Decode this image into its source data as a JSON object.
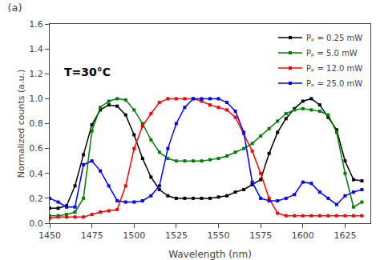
{
  "chart_data": {
    "type": "line",
    "title": "(a)",
    "annotations": [
      {
        "text": "T=30°C"
      }
    ],
    "x_label": "Wavelength (nm)",
    "y_label": "Normalized counts (a.u.)",
    "xlim": [
      1450,
      1640
    ],
    "ylim": [
      0.0,
      1.6
    ],
    "xticks": [
      1450,
      1475,
      1500,
      1525,
      1550,
      1575,
      1600,
      1625
    ],
    "yticks": [
      {
        "value": 0,
        "label": "0.0"
      },
      0.2,
      0.4,
      0.6,
      0.8,
      {
        "value": 1,
        "label": "1.0"
      },
      1.2,
      1.4,
      1.6
    ],
    "grid": false,
    "legend": "upper right",
    "marker": "square",
    "line_style": "solid",
    "x": [
      1450,
      1455,
      1460,
      1465,
      1470,
      1475,
      1480,
      1485,
      1490,
      1495,
      1500,
      1505,
      1510,
      1515,
      1520,
      1525,
      1530,
      1535,
      1540,
      1545,
      1550,
      1555,
      1560,
      1565,
      1570,
      1575,
      1580,
      1585,
      1590,
      1595,
      1600,
      1605,
      1610,
      1615,
      1620,
      1625,
      1630,
      1635
    ],
    "series": [
      {
        "name": "Pₚ = 0.25 mW",
        "color": "black",
        "values": [
          0.12,
          0.12,
          0.14,
          0.3,
          0.55,
          0.79,
          0.91,
          0.95,
          0.94,
          0.87,
          0.71,
          0.52,
          0.37,
          0.27,
          0.22,
          0.2,
          0.2,
          0.2,
          0.2,
          0.2,
          0.21,
          0.22,
          0.25,
          0.27,
          0.31,
          0.35,
          0.56,
          0.73,
          0.84,
          0.92,
          0.98,
          1.0,
          0.95,
          0.85,
          0.75,
          0.5,
          0.35,
          0.34
        ]
      },
      {
        "name": "Pₚ = 5.0 mW",
        "color": "green",
        "values": [
          0.06,
          0.06,
          0.07,
          0.09,
          0.2,
          0.74,
          0.93,
          0.98,
          1.0,
          0.99,
          0.91,
          0.8,
          0.67,
          0.57,
          0.52,
          0.5,
          0.5,
          0.5,
          0.5,
          0.51,
          0.52,
          0.54,
          0.57,
          0.6,
          0.64,
          0.7,
          0.76,
          0.82,
          0.88,
          0.91,
          0.92,
          0.91,
          0.9,
          0.87,
          0.73,
          0.4,
          0.13,
          0.17
        ]
      },
      {
        "name": "Pₚ = 12.0 mW",
        "color": "red",
        "values": [
          0.04,
          0.05,
          0.05,
          0.05,
          0.05,
          0.07,
          0.09,
          0.1,
          0.11,
          0.3,
          0.6,
          0.78,
          0.88,
          0.97,
          1.0,
          1.0,
          1.0,
          1.0,
          0.98,
          0.95,
          0.93,
          0.91,
          0.85,
          0.72,
          0.58,
          0.4,
          0.2,
          0.08,
          0.06,
          0.06,
          0.06,
          0.06,
          0.06,
          0.06,
          0.06,
          0.06,
          0.06,
          0.06
        ]
      },
      {
        "name": "Pₚ = 25.0 mW",
        "color": "blue",
        "values": [
          0.2,
          0.17,
          0.13,
          0.13,
          0.47,
          0.5,
          0.42,
          0.3,
          0.18,
          0.17,
          0.17,
          0.18,
          0.22,
          0.3,
          0.6,
          0.8,
          0.93,
          1.0,
          1.0,
          1.0,
          1.0,
          0.97,
          0.9,
          0.73,
          0.33,
          0.2,
          0.18,
          0.18,
          0.2,
          0.23,
          0.33,
          0.32,
          0.25,
          0.2,
          0.15,
          0.22,
          0.25,
          0.27
        ]
      }
    ]
  }
}
